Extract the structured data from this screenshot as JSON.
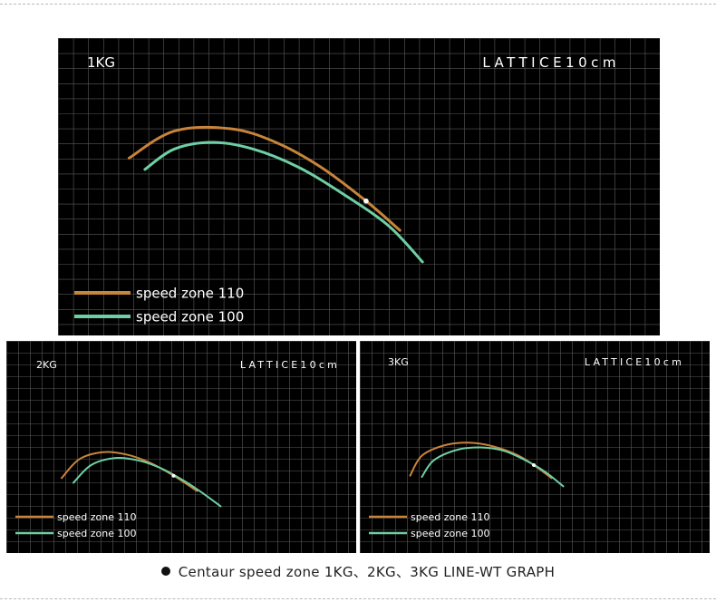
{
  "caption": "Centaur speed zone 1KG、2KG、3KG LINE-WT GRAPH",
  "grid_label": "LATTICE10cm",
  "colors": {
    "speed_zone_110": "#c8843a",
    "speed_zone_100": "#6fcfa4",
    "grid": "#5a5a5a",
    "background": "#000000"
  },
  "chart_data": [
    {
      "type": "line",
      "title": "1KG",
      "grid_label": "LATTICE10cm",
      "legend_position": "bottom-left",
      "marker": "white-dot",
      "series": [
        {
          "name": "speed zone 110",
          "points": [
            [
              0.5,
              4.0
            ],
            [
              2.5,
              5.2
            ],
            [
              5.0,
              5.3
            ],
            [
              7.0,
              4.7
            ],
            [
              9.0,
              3.6
            ],
            [
              11.0,
              2.1
            ],
            [
              12.5,
              0.8
            ]
          ]
        },
        {
          "name": "speed zone 100",
          "points": [
            [
              1.2,
              3.5
            ],
            [
              2.5,
              4.4
            ],
            [
              4.2,
              4.7
            ],
            [
              6.0,
              4.4
            ],
            [
              8.0,
              3.6
            ],
            [
              10.0,
              2.4
            ],
            [
              12.0,
              1.0
            ],
            [
              13.5,
              -0.6
            ]
          ]
        }
      ]
    },
    {
      "type": "line",
      "title": "2KG",
      "grid_label": "LATTICE10cm",
      "legend_position": "bottom-left",
      "marker": "white-dot",
      "series": [
        {
          "name": "speed zone 110",
          "points": [
            [
              1.0,
              1.9
            ],
            [
              2.5,
              3.5
            ],
            [
              4.5,
              4.1
            ],
            [
              6.5,
              3.9
            ],
            [
              8.5,
              3.2
            ],
            [
              10.5,
              2.1
            ],
            [
              12.5,
              0.8
            ]
          ]
        },
        {
          "name": "speed zone 100",
          "points": [
            [
              2.0,
              1.5
            ],
            [
              3.5,
              3.0
            ],
            [
              5.5,
              3.6
            ],
            [
              7.5,
              3.4
            ],
            [
              9.5,
              2.7
            ],
            [
              11.5,
              1.6
            ],
            [
              13.0,
              0.6
            ],
            [
              14.5,
              -0.5
            ]
          ]
        }
      ]
    },
    {
      "type": "line",
      "title": "3KG",
      "grid_label": "LATTICE10cm",
      "legend_position": "bottom-left",
      "marker": "white-dot",
      "series": [
        {
          "name": "speed zone 110",
          "points": [
            [
              1.5,
              1.1
            ],
            [
              2.5,
              2.8
            ],
            [
              4.5,
              3.7
            ],
            [
              6.5,
              3.9
            ],
            [
              8.5,
              3.6
            ],
            [
              10.5,
              2.9
            ],
            [
              12.0,
              2.0
            ],
            [
              13.5,
              0.9
            ]
          ]
        },
        {
          "name": "speed zone 100",
          "points": [
            [
              2.5,
              1.0
            ],
            [
              3.5,
              2.4
            ],
            [
              5.5,
              3.3
            ],
            [
              7.5,
              3.5
            ],
            [
              9.5,
              3.2
            ],
            [
              11.5,
              2.3
            ],
            [
              13.0,
              1.4
            ],
            [
              14.5,
              0.2
            ]
          ]
        }
      ]
    }
  ]
}
